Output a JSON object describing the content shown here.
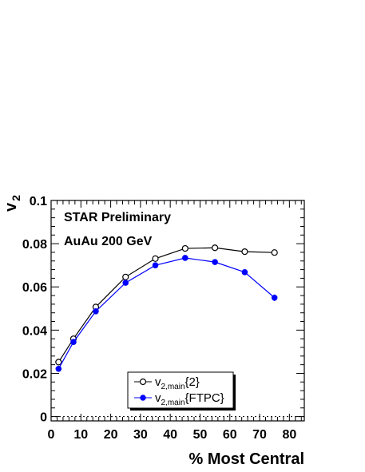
{
  "chart_data": {
    "type": "line",
    "xlabel": "% Most Central",
    "ylabel": {
      "main": "v",
      "sub": "2"
    },
    "xlim": [
      0,
      85
    ],
    "ylim": [
      -0.002,
      0.1
    ],
    "xticks": [
      0,
      10,
      20,
      30,
      40,
      50,
      60,
      70,
      80
    ],
    "xtick_labels": [
      "0",
      "10",
      "20",
      "30",
      "40",
      "50",
      "60",
      "70",
      "80"
    ],
    "yticks": [
      0,
      0.02,
      0.04,
      0.06,
      0.08,
      0.1
    ],
    "ytick_labels": [
      "0",
      "0.02",
      "0.04",
      "0.06",
      "0.08",
      "0.1"
    ],
    "annotations": [
      "STAR Preliminary",
      "AuAu 200 GeV"
    ],
    "zero_line": true,
    "legend_position": "bottom-center",
    "series": [
      {
        "legend_main": "v",
        "legend_sub": "2,main",
        "legend_suffix": "{2}",
        "marker": "open-circle",
        "color": "#000000",
        "x": [
          2.5,
          7.5,
          15,
          25,
          35,
          45,
          55,
          65,
          75
        ],
        "y": [
          0.0252,
          0.036,
          0.0507,
          0.0646,
          0.0731,
          0.0778,
          0.0781,
          0.0763,
          0.0759
        ],
        "err": [
          0.0003,
          0.0003,
          0.0003,
          0.0003,
          0.0003,
          0.0003,
          0.0003,
          0.0003,
          0.0003
        ]
      },
      {
        "legend_main": "v",
        "legend_sub": "2,main",
        "legend_suffix": "{FTPC}",
        "marker": "filled-circle",
        "color": "#0000ff",
        "x": [
          2.5,
          7.5,
          15,
          25,
          35,
          45,
          55,
          65,
          75
        ],
        "y": [
          0.0221,
          0.0345,
          0.0487,
          0.0619,
          0.07,
          0.0734,
          0.0715,
          0.0668,
          0.055
        ],
        "err": [
          0.0005,
          0.0005,
          0.0005,
          0.0005,
          0.0005,
          0.0005,
          0.0005,
          0.0005,
          0.0015
        ]
      }
    ]
  }
}
